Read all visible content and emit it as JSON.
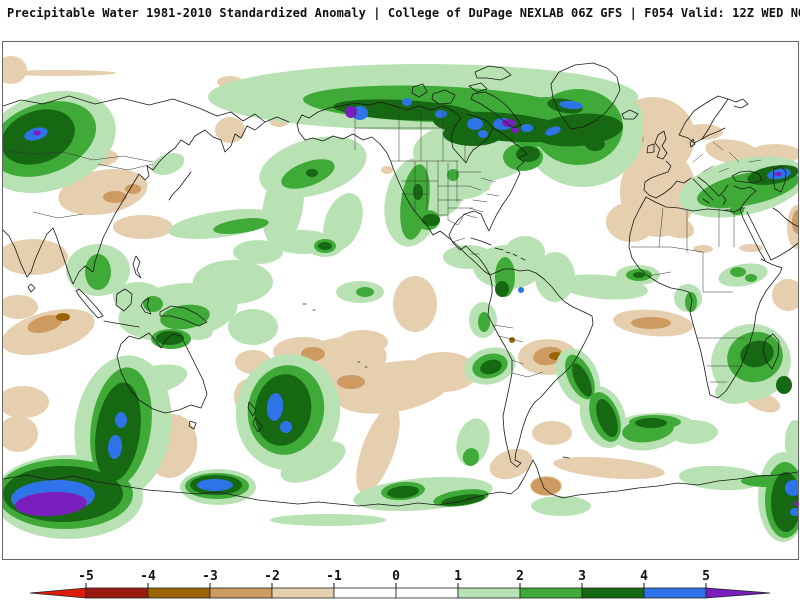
{
  "title": {
    "text": "Precipitable Water 1981-2010 Standardized Anomaly | College of DuPage NEXLAB  06Z GFS | F054 Valid: 12Z WED NOV 19 2025"
  },
  "palette": {
    "bright-red": "#dd1c0c",
    "dark-red": "#9b1a10",
    "brown": "#9a6400",
    "tan": "#cd9b62",
    "light-tan": "#e6cfae",
    "white": "#ffffff",
    "light-green": "#b9e2b4",
    "green": "#3faa38",
    "dark-green": "#176812",
    "blue": "#2e74e8",
    "purple": "#7a1fbe",
    "coastline": "#1a1a1a",
    "border": "#333333",
    "frame": "#666666"
  },
  "colorbar": {
    "ticks": [
      "-5",
      "-4",
      "-3",
      "-2",
      "-1",
      "0",
      "1",
      "2",
      "3",
      "4",
      "5"
    ],
    "segment_colors": [
      "#9b1a10",
      "#9a6400",
      "#cd9b62",
      "#e6cfae",
      "#ffffff",
      "#ffffff",
      "#b9e2b4",
      "#3faa38",
      "#176812",
      "#2e74e8"
    ],
    "arrow_left_color": "#dd1c0c",
    "arrow_right_color": "#7a1fbe"
  },
  "chart_data": {
    "type": "heatmap",
    "title": "Precipitable Water 1981-2010 Standardized Anomaly",
    "source": "College of DuPage NEXLAB",
    "model_run": "06Z GFS",
    "forecast_hour": "F054",
    "valid": "12Z WED NOV 19 2025",
    "colorbar_ticks": [
      -5,
      -4,
      -3,
      -2,
      -1,
      0,
      1,
      2,
      3,
      4,
      5
    ],
    "legend_position": "bottom"
  }
}
